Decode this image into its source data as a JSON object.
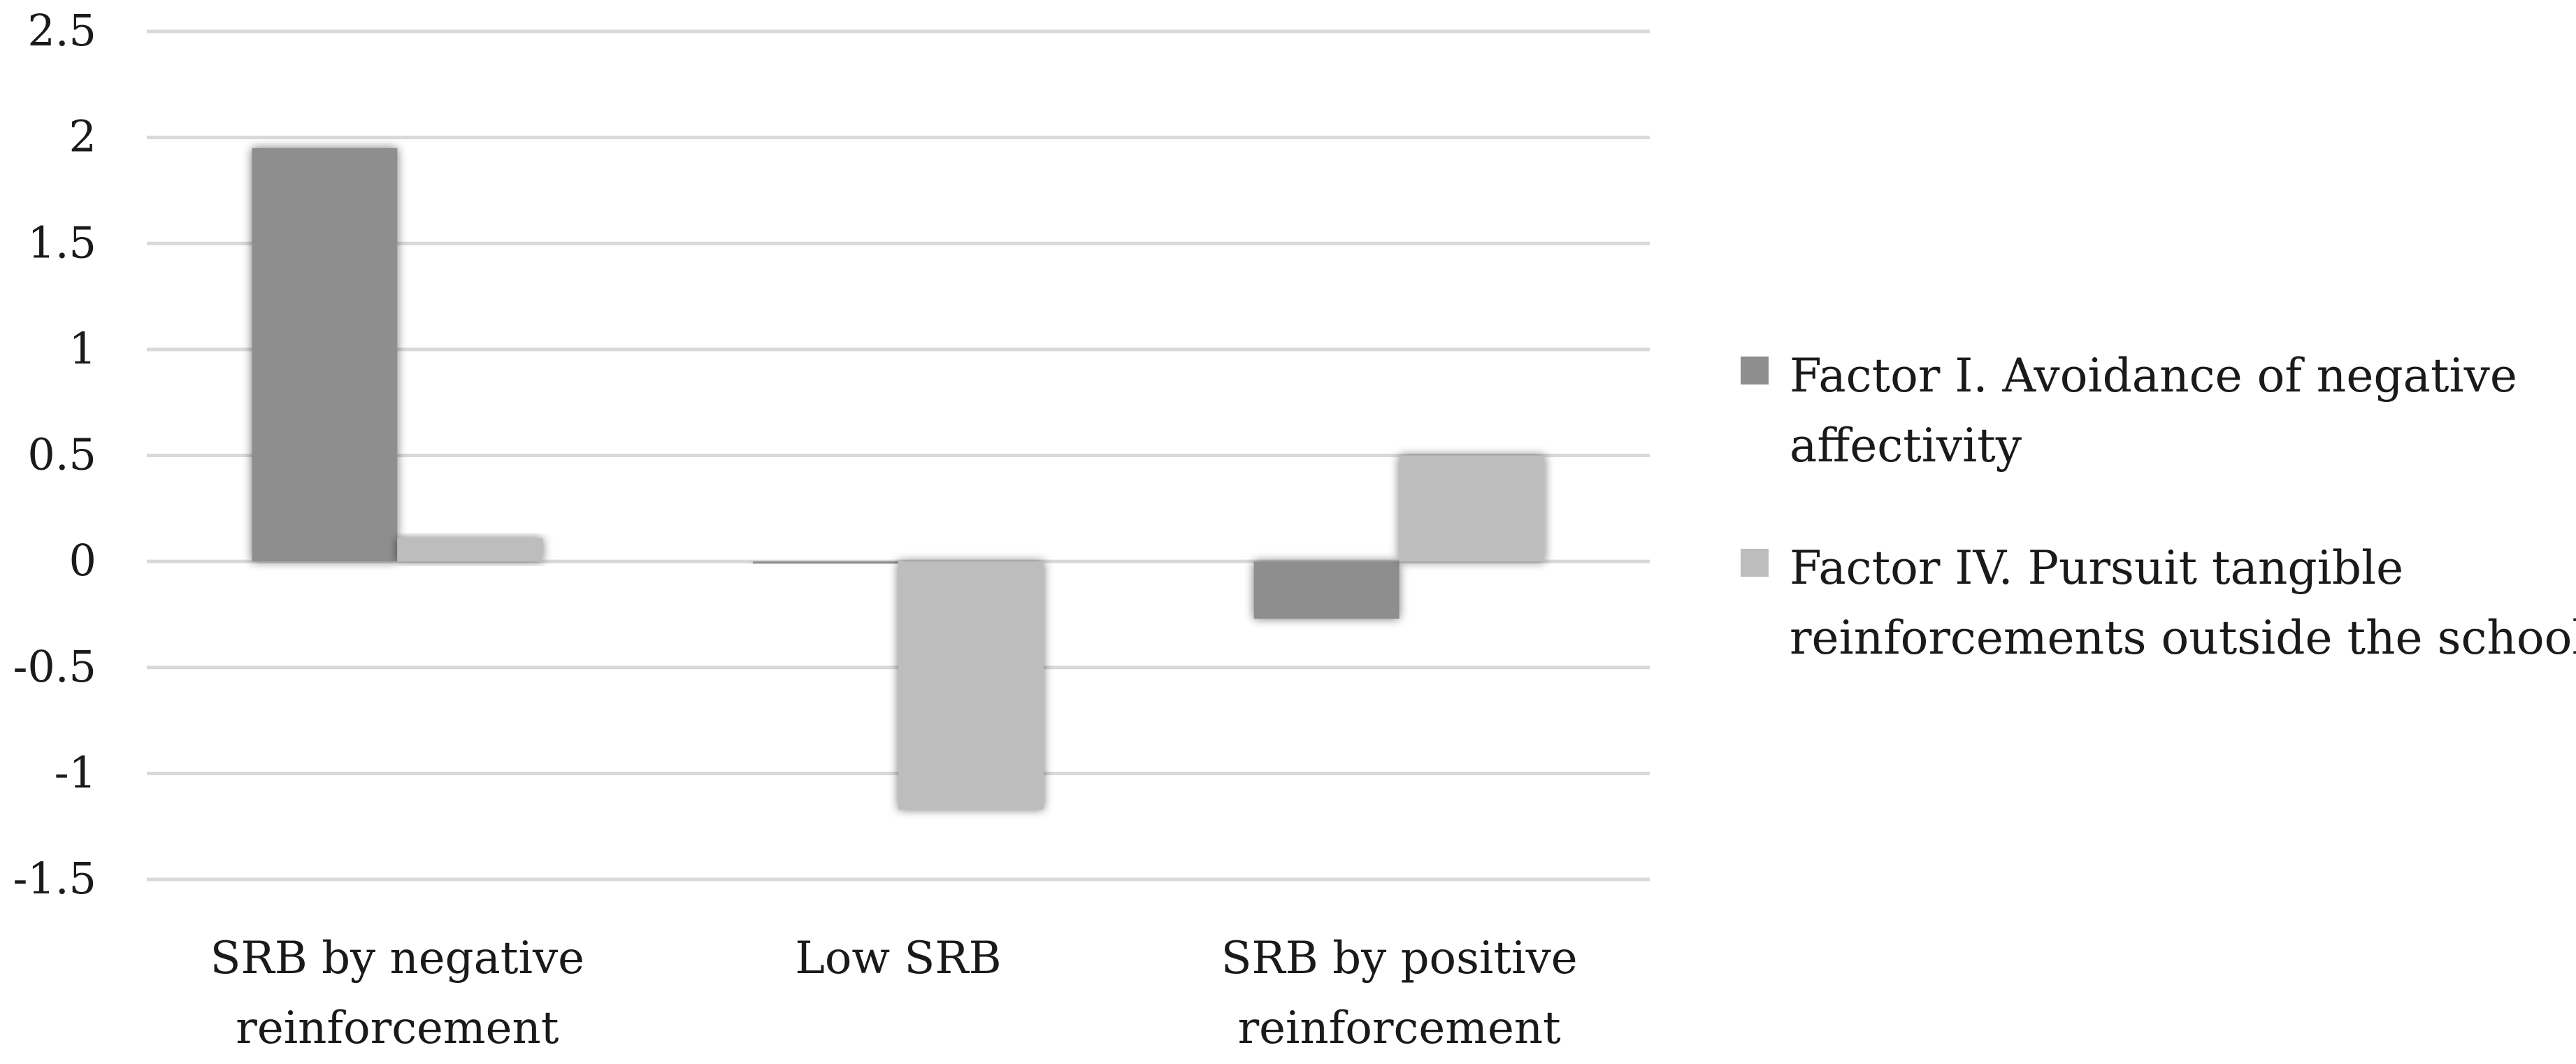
{
  "chart_data": {
    "type": "bar",
    "categories": [
      [
        "SRB by negative",
        "reinforcement"
      ],
      [
        "Low SRB"
      ],
      [
        "SRB by positive",
        "reinforcement"
      ]
    ],
    "series": [
      {
        "name": [
          "Factor I. Avoidance of negative",
          "affectivity"
        ],
        "values": [
          1.95,
          -0.01,
          -0.27
        ],
        "color": "#8e8e8e"
      },
      {
        "name": [
          "Factor IV. Pursuit tangible",
          "reinforcements outside the school"
        ],
        "values": [
          0.11,
          -1.17,
          0.5
        ],
        "color": "#bdbdbd"
      }
    ],
    "ylim": [
      -1.5,
      2.5
    ],
    "yticks": [
      "2.5",
      "2",
      "1.5",
      "1",
      "0.5",
      "0",
      "-0.5",
      "-1",
      "-1.5"
    ],
    "grid": true,
    "legend": "right"
  }
}
